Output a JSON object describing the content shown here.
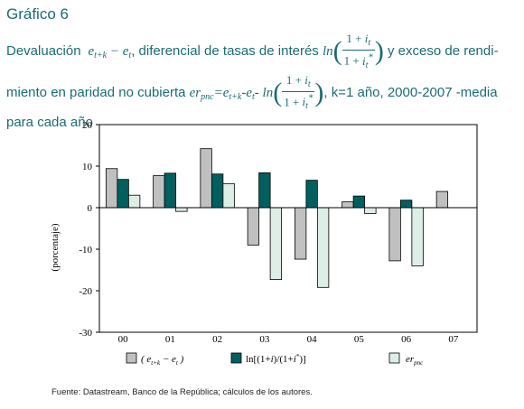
{
  "header": {
    "figure_label": "Gráfico 6",
    "title_part1": "Devaluación",
    "title_part2": ", diferencial de tasas de interés",
    "title_part3": "y exceso de rendi-",
    "title_part4": "miento en paridad no cubierta",
    "title_part5": ", k=1 año, 2000-2007 -media",
    "title_part6": "para cada año"
  },
  "chart_data": {
    "type": "bar",
    "categories": [
      "00",
      "01",
      "02",
      "03",
      "04",
      "05",
      "06",
      "07"
    ],
    "ylabel": "(porcentaje)",
    "ylim": [
      -30,
      20
    ],
    "yticks": [
      20,
      10,
      0,
      -10,
      -20,
      -30
    ],
    "grid": false,
    "legend_position": "bottom",
    "series": [
      {
        "name": "(e_{t+k} − e_t)",
        "color": "#c0c0c0",
        "values": [
          9.4,
          7.7,
          14.2,
          -9.0,
          -12.4,
          1.4,
          -12.8,
          3.9
        ]
      },
      {
        "name": "ln[(1+i)/(1+i*)]",
        "color": "#006060",
        "values": [
          6.8,
          8.3,
          8.1,
          8.4,
          6.6,
          2.8,
          1.8,
          null
        ]
      },
      {
        "name": "er_pnc",
        "color": "#ddeee6",
        "values": [
          3.0,
          -0.9,
          5.8,
          -17.3,
          -19.2,
          -1.4,
          -14.0,
          null
        ]
      }
    ]
  },
  "source": "Fuente: Datastream, Banco de la República; cálculos de los autores."
}
